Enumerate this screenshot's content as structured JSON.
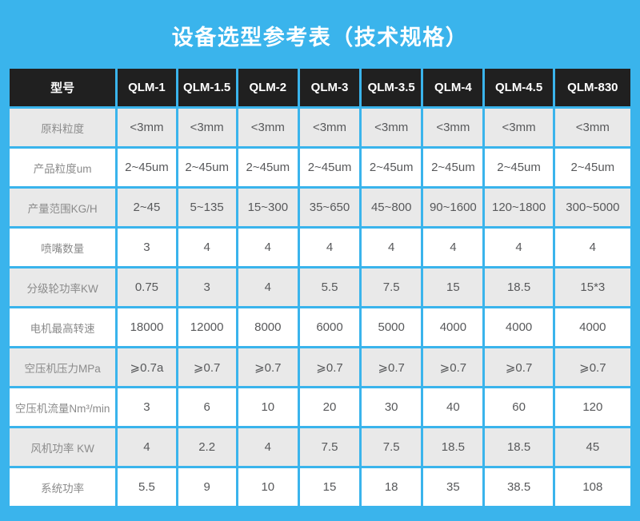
{
  "title": "设备选型参考表（技术规格）",
  "colors": {
    "background": "#3ab4ec",
    "header_bg": "#202020",
    "header_text": "#ffffff",
    "stripe_gray": "#e9e9e9",
    "stripe_white": "#ffffff",
    "label_text": "#8b8b8b",
    "value_text": "#58595b"
  },
  "table": {
    "corner_label": "型号",
    "models": [
      "QLM-1",
      "QLM-1.5",
      "QLM-2",
      "QLM-3",
      "QLM-3.5",
      "QLM-4",
      "QLM-4.5",
      "QLM-830"
    ],
    "rows": [
      {
        "label": "原料粒度",
        "values": [
          "<3mm",
          "<3mm",
          "<3mm",
          "<3mm",
          "<3mm",
          "<3mm",
          "<3mm",
          "<3mm"
        ]
      },
      {
        "label": "产品粒度um",
        "values": [
          "2~45um",
          "2~45um",
          "2~45um",
          "2~45um",
          "2~45um",
          "2~45um",
          "2~45um",
          "2~45um"
        ]
      },
      {
        "label": "产量范围KG/H",
        "values": [
          "2~45",
          "5~135",
          "15~300",
          "35~650",
          "45~800",
          "90~1600",
          "120~1800",
          "300~5000"
        ]
      },
      {
        "label": "喷嘴数量",
        "values": [
          "3",
          "4",
          "4",
          "4",
          "4",
          "4",
          "4",
          "4"
        ]
      },
      {
        "label": "分级轮功率KW",
        "values": [
          "0.75",
          "3",
          "4",
          "5.5",
          "7.5",
          "15",
          "18.5",
          "15*3"
        ]
      },
      {
        "label": "电机最高转速",
        "values": [
          "18000",
          "12000",
          "8000",
          "6000",
          "5000",
          "4000",
          "4000",
          "4000"
        ]
      },
      {
        "label": "空压机压力MPa",
        "values": [
          "⩾0.7a",
          "⩾0.7",
          "⩾0.7",
          "⩾0.7",
          "⩾0.7",
          "⩾0.7",
          "⩾0.7",
          "⩾0.7"
        ]
      },
      {
        "label": "空压机流量Nm³/min",
        "values": [
          "3",
          "6",
          "10",
          "20",
          "30",
          "40",
          "60",
          "120"
        ]
      },
      {
        "label": "风机功率 KW",
        "values": [
          "4",
          "2.2",
          "4",
          "7.5",
          "7.5",
          "18.5",
          "18.5",
          "45"
        ]
      },
      {
        "label": "系统功率",
        "values": [
          "5.5",
          "9",
          "10",
          "15",
          "18",
          "35",
          "38.5",
          "108"
        ]
      }
    ]
  }
}
